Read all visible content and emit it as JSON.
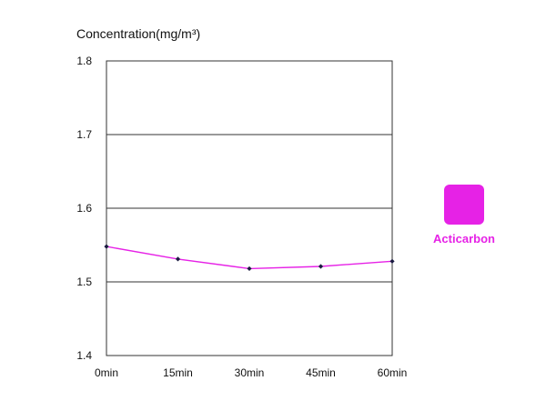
{
  "chart_data": {
    "type": "line",
    "ylabel": "Concentration(mg/m³)",
    "xlabel": "",
    "categories": [
      "0min",
      "15min",
      "30min",
      "45min",
      "60min"
    ],
    "ylim": [
      1.4,
      1.8
    ],
    "yticks": [
      "1.4",
      "1.5",
      "1.6",
      "1.7",
      "1.8"
    ],
    "grid": "horizontal",
    "legend_position": "right",
    "series": [
      {
        "name": "Acticarbon",
        "values": [
          1.548,
          1.531,
          1.518,
          1.521,
          1.528
        ],
        "color": "#e622e6",
        "marker_color": "#1a1a40"
      }
    ]
  }
}
